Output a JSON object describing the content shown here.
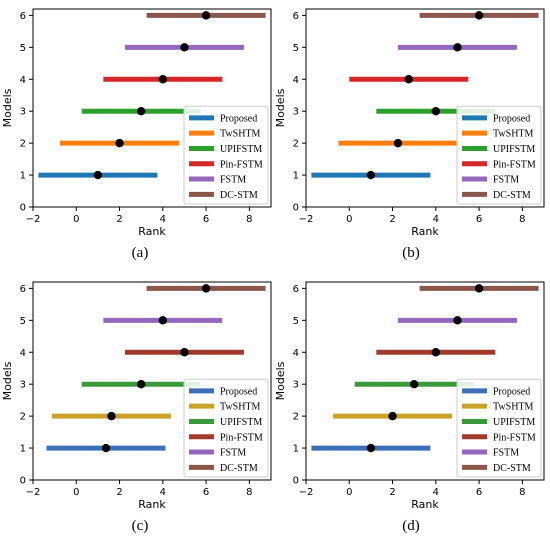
{
  "figure": {
    "xlabel": "Rank",
    "ylabel": "Models"
  },
  "chart_data": [
    {
      "type": "interval",
      "panel_label": "(a)",
      "xlabel": "Rank",
      "ylabel": "Models",
      "xlim": [
        -2,
        9
      ],
      "ylim": [
        0,
        6.2
      ],
      "xticks": [
        -2,
        0,
        2,
        4,
        6,
        8
      ],
      "yticks": [
        0,
        1,
        2,
        3,
        4,
        5,
        6
      ],
      "legend_position": "lower-right",
      "series": [
        {
          "name": "Proposed",
          "y": 1,
          "rank": 1.0,
          "low": -1.75,
          "high": 3.75,
          "color": "#1f77b4"
        },
        {
          "name": "TwSHTM",
          "y": 2,
          "rank": 2.0,
          "low": -0.75,
          "high": 4.75,
          "color": "#ff7f0e"
        },
        {
          "name": "UPIFSTM",
          "y": 3,
          "rank": 3.0,
          "low": 0.25,
          "high": 5.75,
          "color": "#2ca02c"
        },
        {
          "name": "Pin-FSTM",
          "y": 4,
          "rank": 4.0,
          "low": 1.25,
          "high": 6.75,
          "color": "#d62728"
        },
        {
          "name": "FSTM",
          "y": 5,
          "rank": 5.0,
          "low": 2.25,
          "high": 7.75,
          "color": "#9467bd"
        },
        {
          "name": "DC-STM",
          "y": 6,
          "rank": 6.0,
          "low": 3.25,
          "high": 8.75,
          "color": "#8c564b"
        }
      ]
    },
    {
      "type": "interval",
      "panel_label": "(b)",
      "xlabel": "Rank",
      "ylabel": "Models",
      "xlim": [
        -2,
        9
      ],
      "ylim": [
        0,
        6.2
      ],
      "xticks": [
        -2,
        0,
        2,
        4,
        6,
        8
      ],
      "yticks": [
        0,
        1,
        2,
        3,
        4,
        5,
        6
      ],
      "legend_position": "lower-right",
      "series": [
        {
          "name": "Proposed",
          "y": 1,
          "rank": 1.0,
          "low": -1.75,
          "high": 3.75,
          "color": "#1f77b4"
        },
        {
          "name": "TwSHTM",
          "y": 2,
          "rank": 2.25,
          "low": -0.5,
          "high": 5.0,
          "color": "#ff7f0e"
        },
        {
          "name": "UPIFSTM",
          "y": 3,
          "rank": 4.0,
          "low": 1.25,
          "high": 6.75,
          "color": "#2ca02c"
        },
        {
          "name": "Pin-FSTM",
          "y": 4,
          "rank": 2.75,
          "low": 0.0,
          "high": 5.5,
          "color": "#d62728"
        },
        {
          "name": "FSTM",
          "y": 5,
          "rank": 5.0,
          "low": 2.25,
          "high": 7.75,
          "color": "#9467bd"
        },
        {
          "name": "DC-STM",
          "y": 6,
          "rank": 6.0,
          "low": 3.25,
          "high": 8.75,
          "color": "#8c564b"
        }
      ]
    },
    {
      "type": "interval",
      "panel_label": "(c)",
      "xlabel": "Rank",
      "ylabel": "Models",
      "xlim": [
        -2,
        9
      ],
      "ylim": [
        0,
        6.2
      ],
      "xticks": [
        -2,
        0,
        2,
        4,
        6,
        8
      ],
      "yticks": [
        0,
        1,
        2,
        3,
        4,
        5,
        6
      ],
      "legend_position": "lower-right",
      "series": [
        {
          "name": "Proposed",
          "y": 1,
          "rank": 1.375,
          "low": -1.375,
          "high": 4.125,
          "color": "#3b6fb6"
        },
        {
          "name": "TwSHTM",
          "y": 2,
          "rank": 1.625,
          "low": -1.125,
          "high": 4.375,
          "color": "#c9a227"
        },
        {
          "name": "UPIFSTM",
          "y": 3,
          "rank": 3.0,
          "low": 0.25,
          "high": 5.75,
          "color": "#3a9a3a"
        },
        {
          "name": "Pin-FSTM",
          "y": 4,
          "rank": 5.0,
          "low": 2.25,
          "high": 7.75,
          "color": "#a13a2a"
        },
        {
          "name": "FSTM",
          "y": 5,
          "rank": 4.0,
          "low": 1.25,
          "high": 6.75,
          "color": "#9467bd"
        },
        {
          "name": "DC-STM",
          "y": 6,
          "rank": 6.0,
          "low": 3.25,
          "high": 8.75,
          "color": "#8c564b"
        }
      ]
    },
    {
      "type": "interval",
      "panel_label": "(d)",
      "xlabel": "Rank",
      "ylabel": "Models",
      "xlim": [
        -2,
        9
      ],
      "ylim": [
        0,
        6.2
      ],
      "xticks": [
        -2,
        0,
        2,
        4,
        6,
        8
      ],
      "yticks": [
        0,
        1,
        2,
        3,
        4,
        5,
        6
      ],
      "legend_position": "lower-right",
      "series": [
        {
          "name": "Proposed",
          "y": 1,
          "rank": 1.0,
          "low": -1.75,
          "high": 3.75,
          "color": "#3b6fb6"
        },
        {
          "name": "TwSHTM",
          "y": 2,
          "rank": 2.0,
          "low": -0.75,
          "high": 4.75,
          "color": "#c9a227"
        },
        {
          "name": "UPIFSTM",
          "y": 3,
          "rank": 3.0,
          "low": 0.25,
          "high": 5.75,
          "color": "#3a9a3a"
        },
        {
          "name": "Pin-FSTM",
          "y": 4,
          "rank": 4.0,
          "low": 1.25,
          "high": 6.75,
          "color": "#a13a2a"
        },
        {
          "name": "FSTM",
          "y": 5,
          "rank": 5.0,
          "low": 2.25,
          "high": 7.75,
          "color": "#9467bd"
        },
        {
          "name": "DC-STM",
          "y": 6,
          "rank": 6.0,
          "low": 3.25,
          "high": 8.75,
          "color": "#8c564b"
        }
      ]
    }
  ]
}
